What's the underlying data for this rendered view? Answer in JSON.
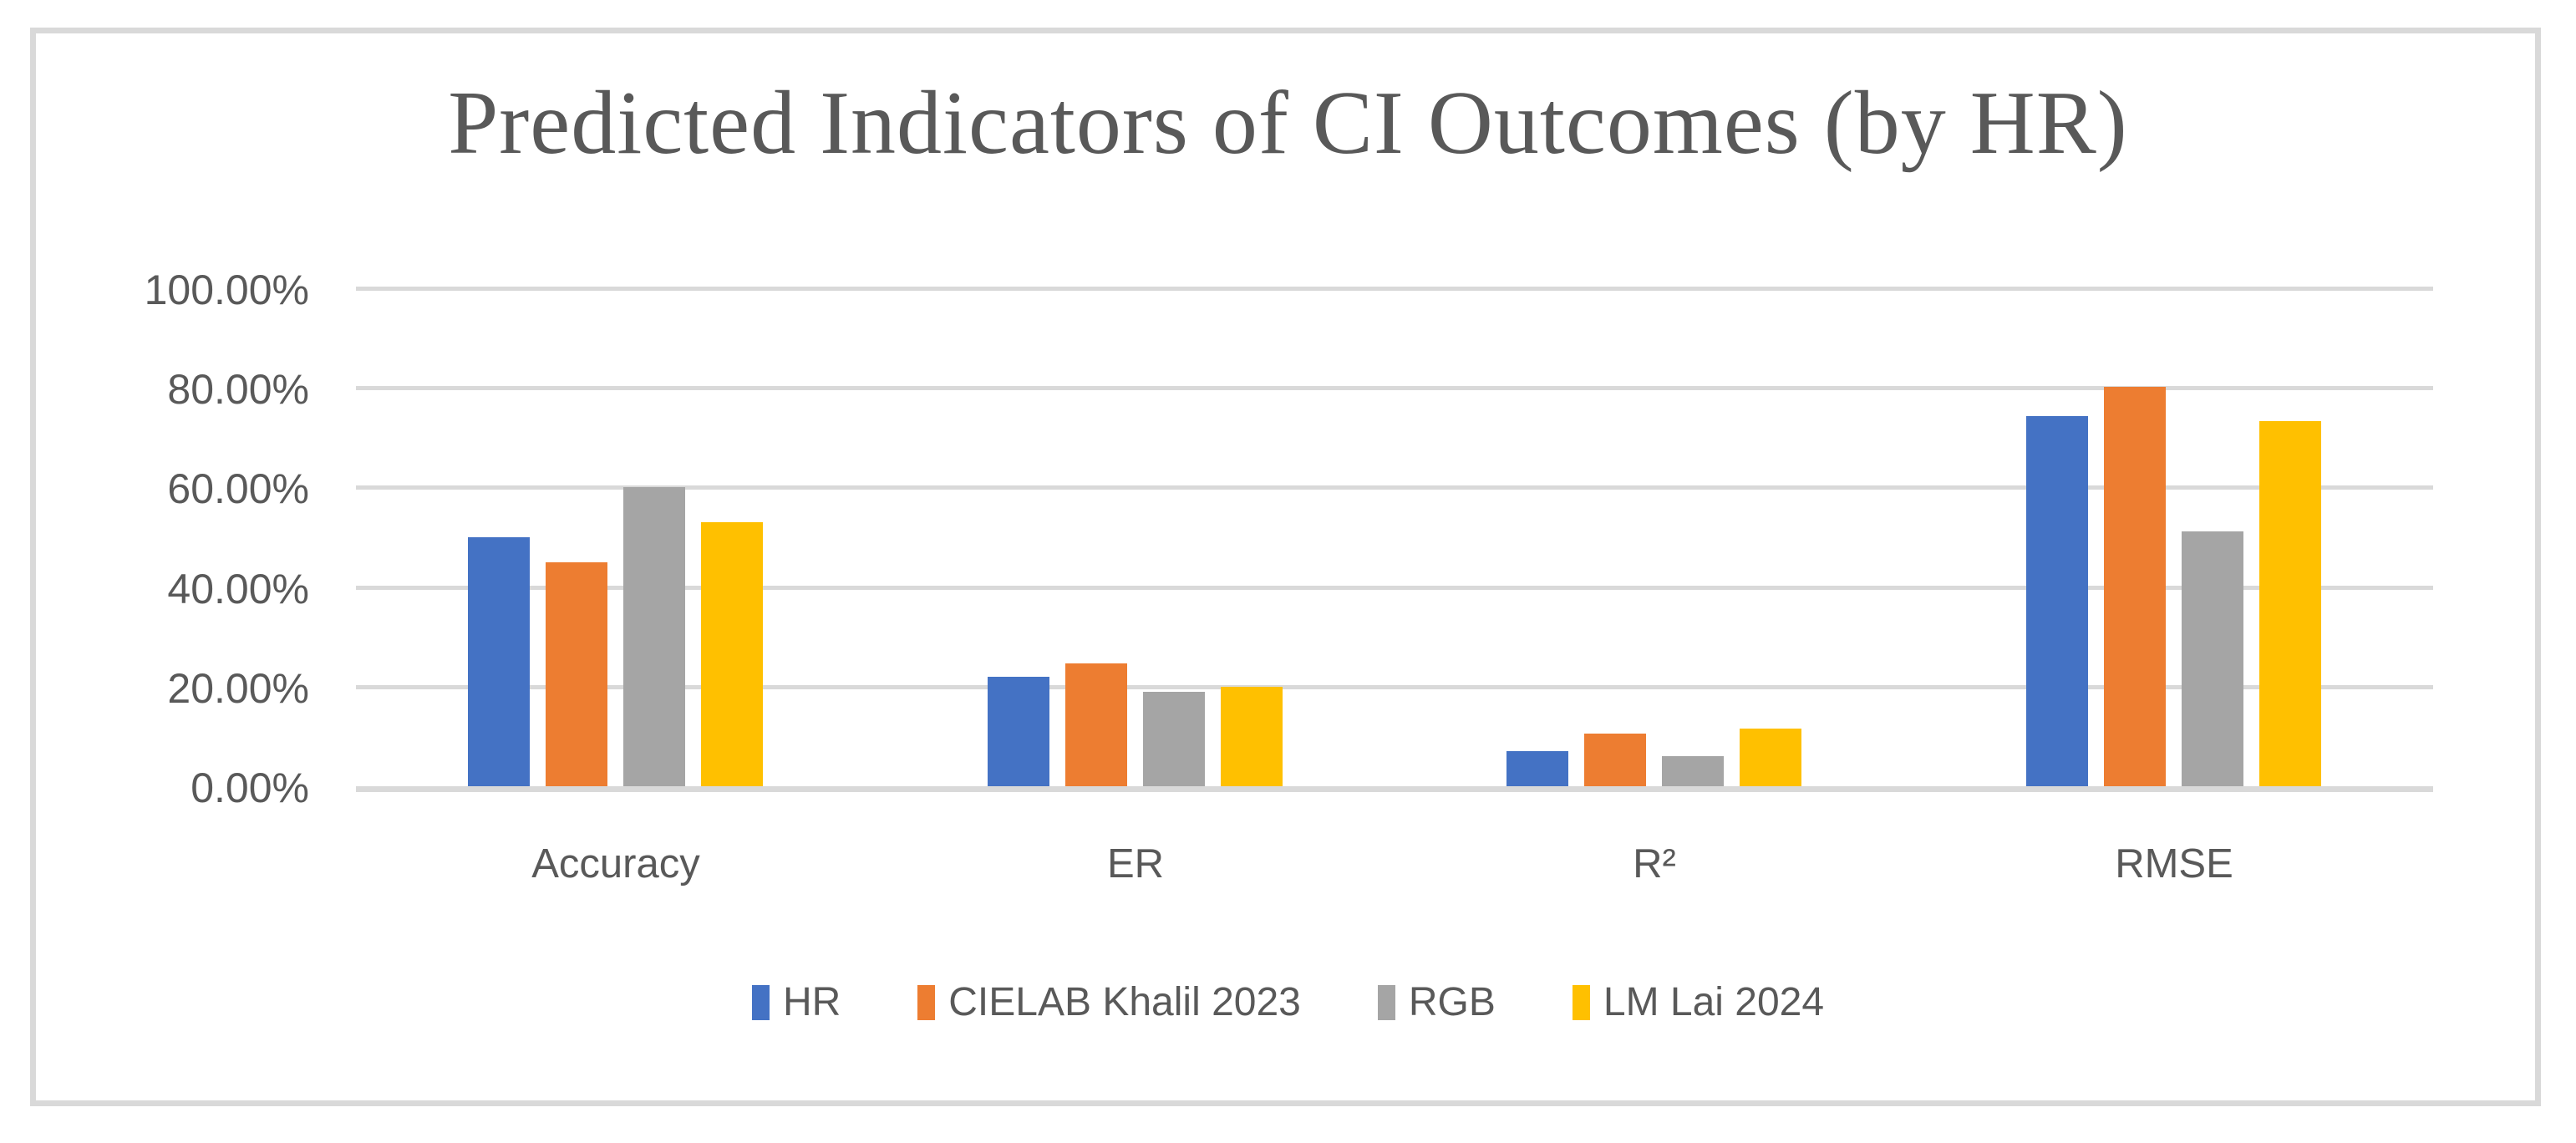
{
  "title": "Predicted Indicators of CI Outcomes (by HR)",
  "colors": {
    "grid": "#D9D9D9",
    "text": "#595959",
    "background": "#FFFFFF",
    "series_hr": "#4472C4",
    "series_cielab": "#ED7D31",
    "series_rgb": "#A5A5A5",
    "series_lm": "#FFC000"
  },
  "y_axis": {
    "tick_labels": [
      "100.00%",
      "80.00%",
      "60.00%",
      "40.00%",
      "20.00%",
      "0.00%"
    ],
    "tick_values": [
      100,
      80,
      60,
      40,
      20,
      0
    ]
  },
  "legend": {
    "items": [
      "HR",
      "CIELAB Khalil 2023",
      "RGB",
      "LM Lai 2024"
    ]
  },
  "chart_data": {
    "type": "bar",
    "title": "Predicted Indicators of CI Outcomes (by HR)",
    "categories": [
      "Accuracy",
      "ER",
      "R²",
      "RMSE"
    ],
    "series": [
      {
        "name": "HR",
        "color": "#4472C4",
        "values": [
          50,
          22,
          7,
          74.3
        ]
      },
      {
        "name": "CIELAB Khalil 2023",
        "color": "#ED7D31",
        "values": [
          45,
          24.7,
          10.6,
          80.2
        ]
      },
      {
        "name": "RGB",
        "color": "#A5A5A5",
        "values": [
          60,
          19,
          6,
          51.2
        ]
      },
      {
        "name": "LM Lai 2024",
        "color": "#FFC000",
        "values": [
          53,
          20,
          11.5,
          73.3
        ]
      }
    ],
    "xlabel": "",
    "ylabel": "",
    "ylim": [
      0,
      100
    ],
    "y_tick_step": 20,
    "y_tick_format": "percent_2dp",
    "grid": "horizontal",
    "legend_position": "bottom"
  }
}
